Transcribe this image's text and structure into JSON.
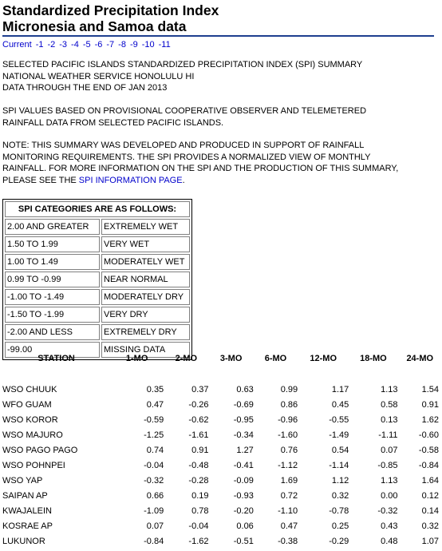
{
  "title": {
    "line1": "Standardized Precipitation Index",
    "line2": "Micronesia and Samoa data"
  },
  "nav": {
    "links": [
      "Current",
      "-1",
      "-2",
      "-3",
      "-4",
      "-5",
      "-6",
      "-7",
      "-8",
      "-9",
      "-10",
      "-11"
    ]
  },
  "intro": {
    "line1": "SELECTED PACIFIC ISLANDS STANDARDIZED PRECIPITATION INDEX (SPI) SUMMARY",
    "line2": "NATIONAL WEATHER SERVICE HONOLULU HI",
    "line3": "DATA THROUGH THE END OF JAN 2013"
  },
  "basis": {
    "line1": "SPI VALUES BASED ON PROVISIONAL COOPERATIVE OBSERVER AND TELEMETERED",
    "line2": "RAINFALL DATA FROM SELECTED PACIFIC ISLANDS."
  },
  "note": {
    "line1": "NOTE: THIS SUMMARY WAS DEVELOPED AND PRODUCED IN SUPPORT OF RAINFALL",
    "line2": "MONITORING REQUIREMENTS. THE SPI PROVIDES A NORMALIZED VIEW OF MONTHLY",
    "line3": "RAINFALL. FOR MORE INFORMATION ON THE SPI AND THE PRODUCTION OF THIS SUMMARY,",
    "line4_prefix": "PLEASE SEE THE ",
    "link": "SPI INFORMATION PAGE",
    "line4_suffix": "."
  },
  "categories": {
    "header": "SPI CATEGORIES ARE AS FOLLOWS:",
    "rows": [
      {
        "range": "2.00 AND GREATER",
        "label": "EXTREMELY WET"
      },
      {
        "range": "1.50 TO 1.99",
        "label": "VERY WET"
      },
      {
        "range": "1.00 TO 1.49",
        "label": "MODERATELY WET"
      },
      {
        "range": "0.99 TO -0.99",
        "label": "NEAR NORMAL"
      },
      {
        "range": "-1.00 TO -1.49",
        "label": "MODERATELY DRY"
      },
      {
        "range": "-1.50 TO -1.99",
        "label": "VERY DRY"
      },
      {
        "range": "-2.00 AND LESS",
        "label": "EXTREMELY DRY"
      },
      {
        "range": "-99.00",
        "label": "MISSING DATA"
      }
    ]
  },
  "spi_table": {
    "columns": [
      "STATION",
      "1-MO",
      "2-MO",
      "3-MO",
      "6-MO",
      "12-MO",
      "18-MO",
      "24-MO"
    ],
    "rows": [
      {
        "station": "WSO CHUUK",
        "values": [
          "0.35",
          "0.37",
          "0.63",
          "0.99",
          "1.17",
          "1.13",
          "1.54"
        ]
      },
      {
        "station": "WFO GUAM",
        "values": [
          "0.47",
          "-0.26",
          "-0.69",
          "0.86",
          "0.45",
          "0.58",
          "0.91"
        ]
      },
      {
        "station": "WSO KOROR",
        "values": [
          "-0.59",
          "-0.62",
          "-0.95",
          "-0.96",
          "-0.55",
          "0.13",
          "1.62"
        ]
      },
      {
        "station": "WSO MAJURO",
        "values": [
          "-1.25",
          "-1.61",
          "-0.34",
          "-1.60",
          "-1.49",
          "-1.11",
          "-0.60"
        ]
      },
      {
        "station": "WSO PAGO PAGO",
        "values": [
          "0.74",
          "0.91",
          "1.27",
          "0.76",
          "0.54",
          "0.07",
          "-0.58"
        ]
      },
      {
        "station": "WSO POHNPEI",
        "values": [
          "-0.04",
          "-0.48",
          "-0.41",
          "-1.12",
          "-1.14",
          "-0.85",
          "-0.84"
        ]
      },
      {
        "station": "WSO YAP",
        "values": [
          "-0.32",
          "-0.28",
          "-0.09",
          "1.69",
          "1.12",
          "1.13",
          "1.64"
        ]
      },
      {
        "station": "SAIPAN AP",
        "values": [
          "0.66",
          "0.19",
          "-0.93",
          "0.72",
          "0.32",
          "0.00",
          "0.12"
        ]
      },
      {
        "station": "KWAJALEIN",
        "values": [
          "-1.09",
          "0.78",
          "-0.20",
          "-1.10",
          "-0.78",
          "-0.32",
          "0.14"
        ]
      },
      {
        "station": "KOSRAE AP",
        "values": [
          "0.07",
          "-0.04",
          "0.06",
          "0.47",
          "0.25",
          "0.43",
          "0.32"
        ]
      },
      {
        "station": "LUKUNOR",
        "values": [
          "-0.84",
          "-1.62",
          "-0.51",
          "-0.38",
          "-0.29",
          "0.48",
          "1.07"
        ]
      }
    ]
  }
}
